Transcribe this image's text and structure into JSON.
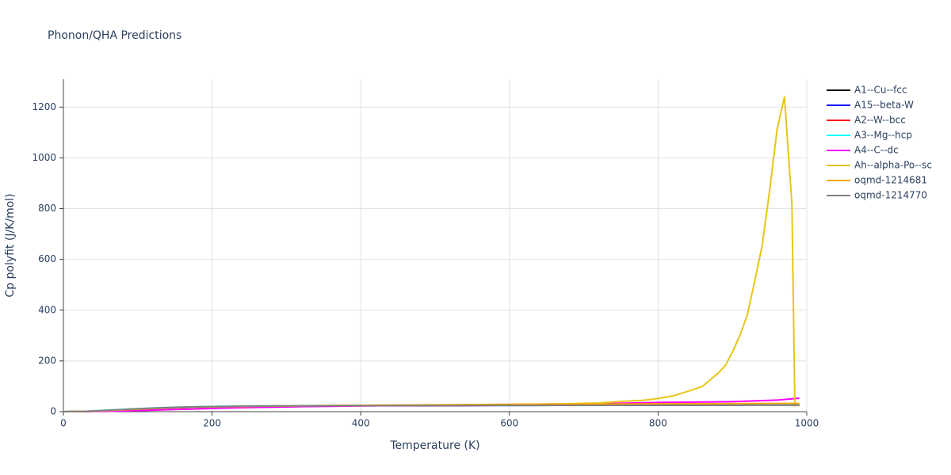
{
  "chart_data": {
    "type": "line",
    "title": "Phonon/QHA Predictions",
    "x_label": "Temperature (K)",
    "y_label": "Cp polyfit (J/K/mol)",
    "xlim": [
      0,
      1000
    ],
    "ylim": [
      0,
      1310
    ],
    "xticks": [
      0,
      200,
      400,
      600,
      800,
      1000
    ],
    "yticks": [
      0,
      200,
      400,
      600,
      800,
      1000,
      1200
    ],
    "grid": true,
    "legend": "right",
    "x": [
      0,
      30,
      60,
      90,
      120,
      150,
      180,
      210,
      240,
      270,
      300,
      330,
      360,
      390,
      420,
      450,
      480,
      510,
      540,
      570,
      600,
      630,
      660,
      690,
      720,
      750,
      780,
      810,
      840,
      870,
      900,
      930,
      960,
      990
    ],
    "series": [
      {
        "name": "A1--Cu--fcc",
        "color": "#000000",
        "values": [
          0,
          1.2,
          5,
          9.5,
          13.5,
          16.5,
          18.5,
          20,
          21,
          21.8,
          22.4,
          22.9,
          23.3,
          23.6,
          23.9,
          24.1,
          24.3,
          24.5,
          24.7,
          24.9,
          25,
          25.2,
          25.3,
          25.5,
          25.6,
          25.8,
          25.9,
          26.1,
          26.2,
          26.4,
          26.5,
          26.7,
          26.8,
          27
        ]
      },
      {
        "name": "A15--beta-W",
        "color": "#0000ff",
        "values": [
          0,
          0.8,
          4,
          8,
          12,
          15.2,
          17.5,
          19.2,
          20.4,
          21.3,
          22,
          22.5,
          22.9,
          23.2,
          23.5,
          23.7,
          23.9,
          24.1,
          24.2,
          24.4,
          24.5,
          24.7,
          24.8,
          24.9,
          25.1,
          25.2,
          25.3,
          25.5,
          25.6,
          25.7,
          25.9,
          26,
          26.1,
          26.3
        ]
      },
      {
        "name": "A2--W--bcc",
        "color": "#ff0000",
        "values": [
          0,
          0.9,
          4.3,
          8.4,
          12.4,
          15.5,
          17.8,
          19.4,
          20.6,
          21.5,
          22.2,
          22.7,
          23.1,
          23.4,
          23.7,
          23.9,
          24.1,
          24.3,
          24.5,
          24.7,
          24.9,
          25.1,
          25.3,
          25.5,
          25.7,
          25.9,
          26.1,
          26.3,
          26.5,
          26.7,
          26.9,
          27.1,
          27.3,
          27.5
        ]
      },
      {
        "name": "A3--Mg--hcp",
        "color": "#00ffff",
        "values": [
          0,
          1.5,
          6,
          10.5,
          14.5,
          17.5,
          19.5,
          21,
          22,
          22.8,
          23.3,
          23.7,
          24.1,
          24.4,
          24.7,
          25,
          25.2,
          25.5,
          25.7,
          25.9,
          26.1,
          26.3,
          26.5,
          26.7,
          26.9,
          27.1,
          27.3,
          27.5,
          27.7,
          27.9,
          28.1,
          28.3,
          28.5,
          28.7
        ]
      },
      {
        "name": "A4--C--dc",
        "color": "#ff00ff",
        "values": [
          0,
          0.3,
          1.5,
          3.5,
          6,
          8.5,
          11,
          13.5,
          15.5,
          17.3,
          18.8,
          20.1,
          21.2,
          22.2,
          23.1,
          24,
          24.9,
          25.8,
          26.7,
          27.6,
          28.5,
          29.4,
          30.3,
          31.2,
          32.1,
          33.3,
          35,
          36.5,
          37.5,
          38.3,
          39.5,
          42.5,
          45.5,
          53
        ]
      },
      {
        "name": "Ah--alpha-Po--sc",
        "color": "#e6c619",
        "x": [
          0,
          30,
          60,
          90,
          120,
          150,
          180,
          210,
          240,
          270,
          300,
          330,
          360,
          390,
          420,
          450,
          480,
          510,
          540,
          570,
          600,
          630,
          660,
          690,
          720,
          750,
          780,
          800,
          820,
          840,
          860,
          880,
          890,
          900,
          910,
          920,
          930,
          940,
          950,
          960,
          970,
          980,
          984
        ],
        "values": [
          0,
          1,
          4.5,
          8.6,
          12.6,
          15.8,
          18,
          19.6,
          20.8,
          21.8,
          22.6,
          23.3,
          24,
          24.6,
          25.2,
          25.8,
          26.4,
          27,
          27.6,
          28.3,
          29,
          29.8,
          30.8,
          32,
          34.5,
          40,
          45,
          52,
          62,
          80,
          100,
          150,
          180,
          235,
          300,
          380,
          515,
          655,
          870,
          1110,
          1240,
          820,
          20
        ]
      },
      {
        "name": "oqmd-1214681",
        "color": "#ffa500",
        "values": [
          0,
          1,
          4.6,
          8.8,
          12.8,
          16,
          18.2,
          19.8,
          21,
          22,
          22.8,
          23.5,
          24.1,
          24.7,
          25.2,
          25.7,
          26.2,
          26.7,
          27.1,
          27.5,
          27.9,
          28.3,
          28.7,
          29.1,
          29.5,
          29.9,
          30.3,
          30.7,
          31,
          31.3,
          31.6,
          31.9,
          32.2,
          32.5
        ]
      },
      {
        "name": "oqmd-1214770",
        "color": "#808080",
        "values": [
          0,
          1.3,
          5.5,
          10,
          14,
          17,
          19,
          20.4,
          21.4,
          22.1,
          22.6,
          23,
          23.3,
          23.6,
          23.8,
          24,
          24.2,
          24.3,
          24.4,
          24.5,
          24.6,
          24.7,
          24.8,
          24.9,
          25,
          25.1,
          25.2,
          25.3,
          25.3,
          25.4,
          25.5,
          25.6,
          25.6,
          25.7
        ]
      }
    ]
  }
}
